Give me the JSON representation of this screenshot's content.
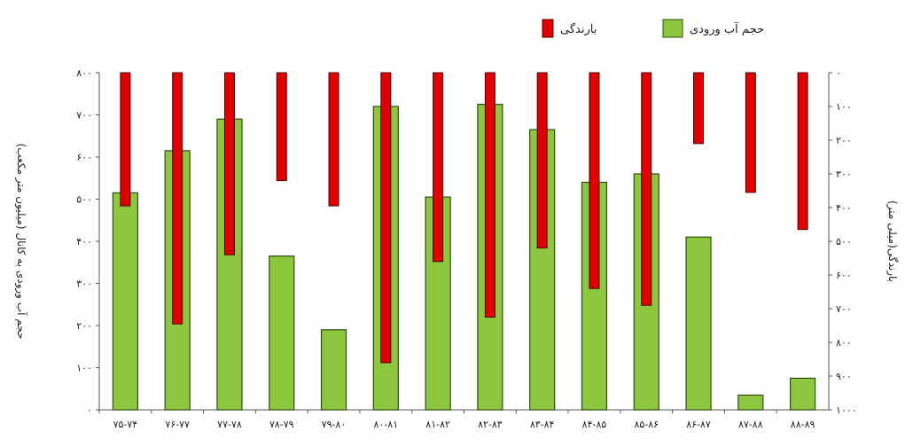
{
  "chart_data": {
    "type": "bar",
    "categories": [
      "۷۵-۷۴",
      "۷۶-۷۷",
      "۷۷-۷۸",
      "۷۸-۷۹",
      "۷۹-۸۰",
      "۸۰-۸۱",
      "۸۱-۸۲",
      "۸۲-۸۳",
      "۸۳-۸۴",
      "۸۴-۸۵",
      "۸۵-۸۶",
      "۸۶-۸۷",
      "۸۷-۸۸",
      "۸۸-۸۹"
    ],
    "series": [
      {
        "name": "حجم آب ورودی",
        "axis": "left",
        "color": "#8dc63f",
        "values": [
          515,
          615,
          690,
          365,
          190,
          720,
          505,
          725,
          665,
          540,
          560,
          410,
          35,
          75
        ]
      },
      {
        "name": "بارندگی",
        "axis": "right",
        "color": "#e00000",
        "direction": "down",
        "values": [
          395,
          745,
          540,
          320,
          395,
          860,
          560,
          725,
          520,
          640,
          690,
          210,
          355,
          465
        ]
      }
    ],
    "ylabel_left": "حجم آب ورودی به کانال (میلیون متر مکعب)",
    "ylabel_right": "بارندگی(میلی متر)",
    "ylim_left": [
      0,
      800
    ],
    "ylim_right": [
      0,
      1000
    ],
    "right_axis_inverted": true,
    "yticks_left": [
      "۰",
      "۱۰۰",
      "۲۰۰",
      "۳۰۰",
      "۴۰۰",
      "۵۰۰",
      "۶۰۰",
      "۷۰۰",
      "۸۰۰"
    ],
    "yticks_right": [
      "۰",
      "۱۰۰",
      "۲۰۰",
      "۳۰۰",
      "۴۰۰",
      "۵۰۰",
      "۶۰۰",
      "۷۰۰",
      "۸۰۰",
      "۹۰۰",
      "۱۰۰۰"
    ],
    "legend_placement": "top-right",
    "grid": false
  }
}
